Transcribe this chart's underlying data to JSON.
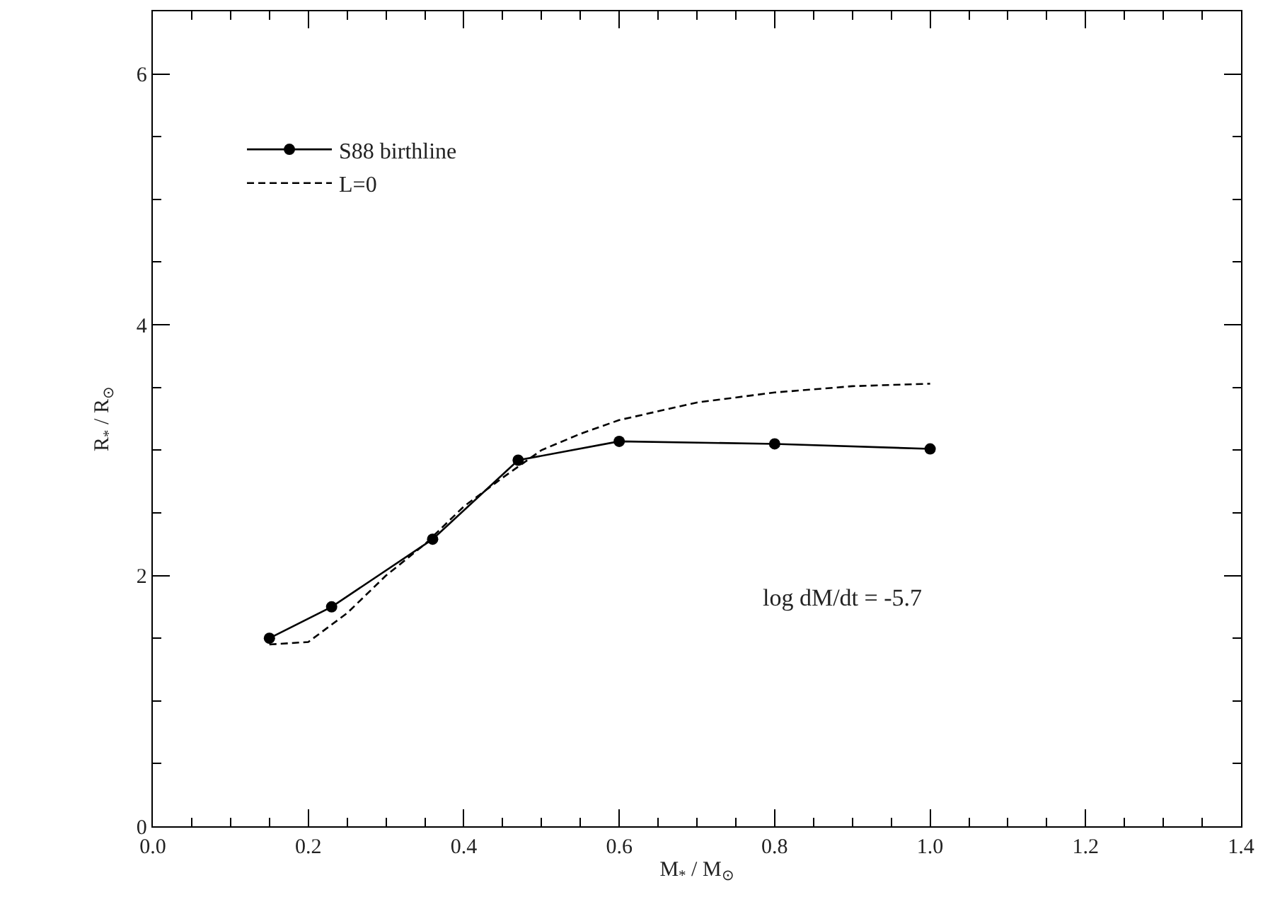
{
  "chart_data": {
    "type": "line",
    "xlabel": "M$_{*}$ / M$_{⊙}$",
    "ylabel": "R$_{*}$ / R$_{⊙}$",
    "xlim": [
      0.0,
      1.4
    ],
    "xticks": [
      {
        "value": 0.0,
        "label": "0.0"
      },
      0.2,
      0.4,
      0.6,
      0.8,
      {
        "value": 1.0,
        "label": "1.0"
      },
      1.2,
      1.4
    ],
    "ylim": [
      0,
      6.5
    ],
    "yticks": [
      0,
      2,
      4,
      6
    ],
    "legend": "top left",
    "annotations": [
      "log dM/dt = -5.7"
    ],
    "series": [
      {
        "name": "S88 birthline",
        "color": "#000000",
        "marker": "circle",
        "line_style": "solid",
        "x": [
          0.15,
          0.23,
          0.36,
          0.47,
          0.6,
          0.8,
          1.0
        ],
        "values": [
          1.5,
          1.75,
          2.29,
          2.92,
          3.07,
          3.05,
          3.01
        ]
      },
      {
        "name": "L=0",
        "color": "#000000",
        "marker": "none",
        "line_style": "dashed",
        "x": [
          0.15,
          0.2,
          0.25,
          0.3,
          0.35,
          0.4,
          0.45,
          0.5,
          0.55,
          0.6,
          0.7,
          0.8,
          0.9,
          1.0
        ],
        "values": [
          1.45,
          1.47,
          1.7,
          2.0,
          2.25,
          2.55,
          2.78,
          3.0,
          3.13,
          3.24,
          3.38,
          3.46,
          3.51,
          3.53
        ]
      }
    ]
  }
}
